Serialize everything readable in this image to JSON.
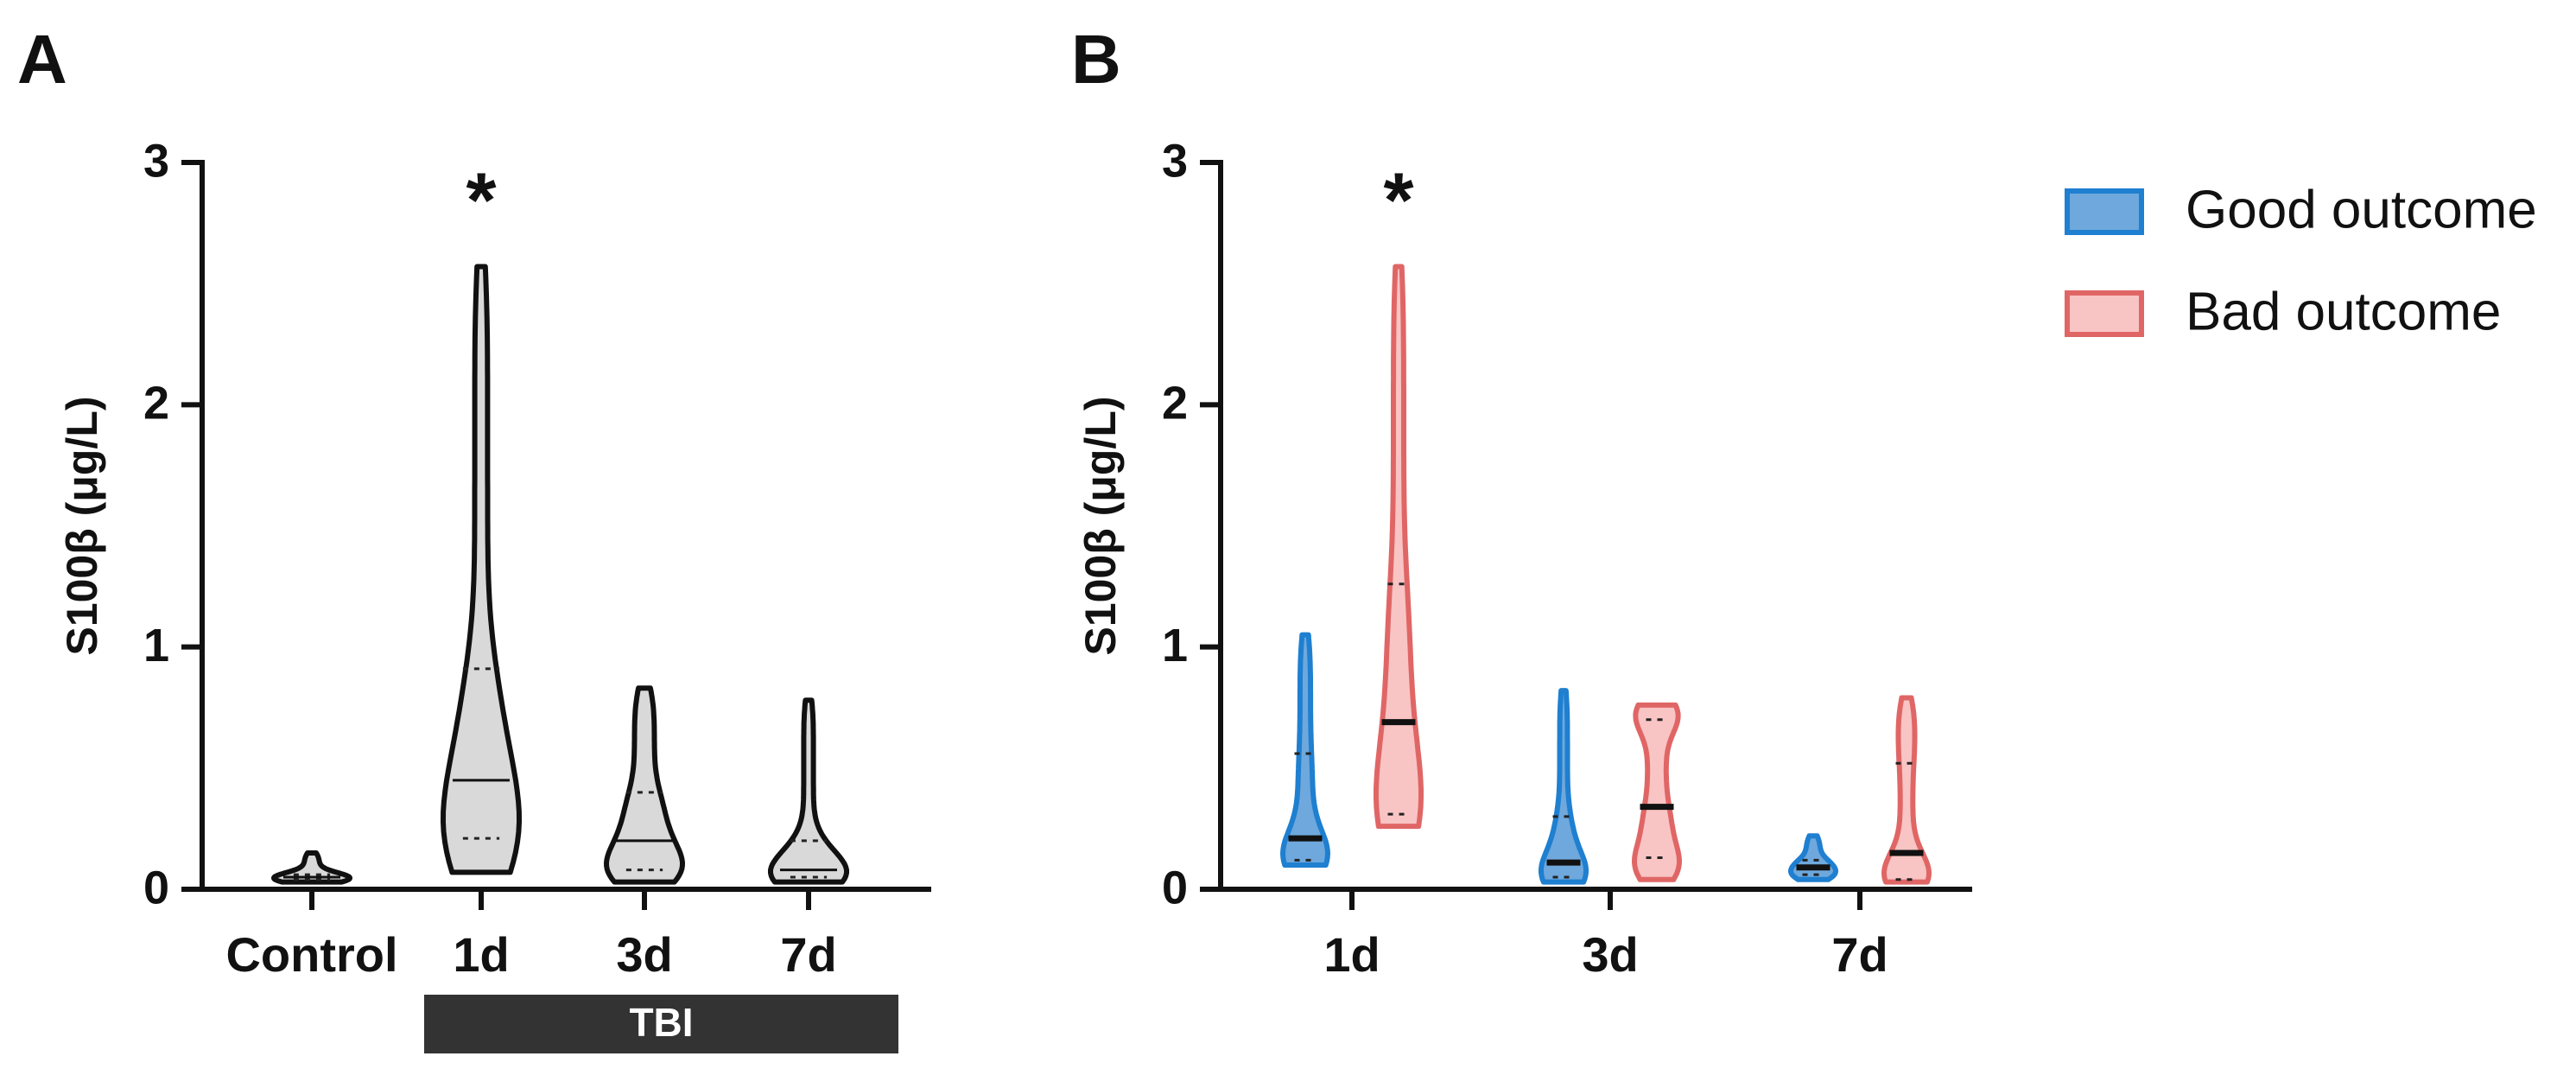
{
  "chart_data": [
    {
      "type": "violin",
      "panel_label": "A",
      "y_label": "S100β (μg/L)",
      "categories": [
        "Control",
        "1d",
        "3d",
        "7d"
      ],
      "color": "#d9d9d9",
      "edge_color": "#111111",
      "min": [
        0.03,
        0.07,
        0.03,
        0.03
      ],
      "q1": [
        0.04,
        0.21,
        0.08,
        0.05
      ],
      "median": [
        0.05,
        0.45,
        0.2,
        0.08
      ],
      "q3": [
        0.06,
        0.91,
        0.4,
        0.2
      ],
      "max": [
        0.15,
        2.57,
        0.83,
        0.78
      ],
      "ylim": [
        0,
        3
      ],
      "yticks": [
        0,
        1,
        2,
        3
      ],
      "annotations": [
        {
          "text": "*",
          "x": "1d"
        }
      ],
      "group": {
        "label": "TBI",
        "from": "1d",
        "to": "7d"
      }
    },
    {
      "type": "violin",
      "panel_label": "B",
      "y_label": "S100β (μg/L)",
      "categories": [
        "1d",
        "3d",
        "7d"
      ],
      "series": [
        {
          "name": "Good outcome",
          "color": "#6fa8dc",
          "edge_color": "#1f7fd0",
          "min": [
            0.1,
            0.03,
            0.04
          ],
          "q1": [
            0.12,
            0.05,
            0.06
          ],
          "median": [
            0.21,
            0.11,
            0.09
          ],
          "q3": [
            0.56,
            0.3,
            0.12
          ],
          "max": [
            1.05,
            0.82,
            0.22
          ]
        },
        {
          "name": "Bad outcome",
          "color": "#f9c4c4",
          "edge_color": "#e06666",
          "min": [
            0.26,
            0.04,
            0.03
          ],
          "q1": [
            0.31,
            0.13,
            0.04
          ],
          "median": [
            0.69,
            0.34,
            0.15
          ],
          "q3": [
            1.26,
            0.7,
            0.52
          ],
          "max": [
            2.57,
            0.76,
            0.79
          ]
        }
      ],
      "ylim": [
        0,
        3
      ],
      "yticks": [
        0,
        1,
        2,
        3
      ],
      "annotations": [
        {
          "text": "*",
          "x": "1d",
          "series": "Bad outcome"
        }
      ]
    }
  ]
}
